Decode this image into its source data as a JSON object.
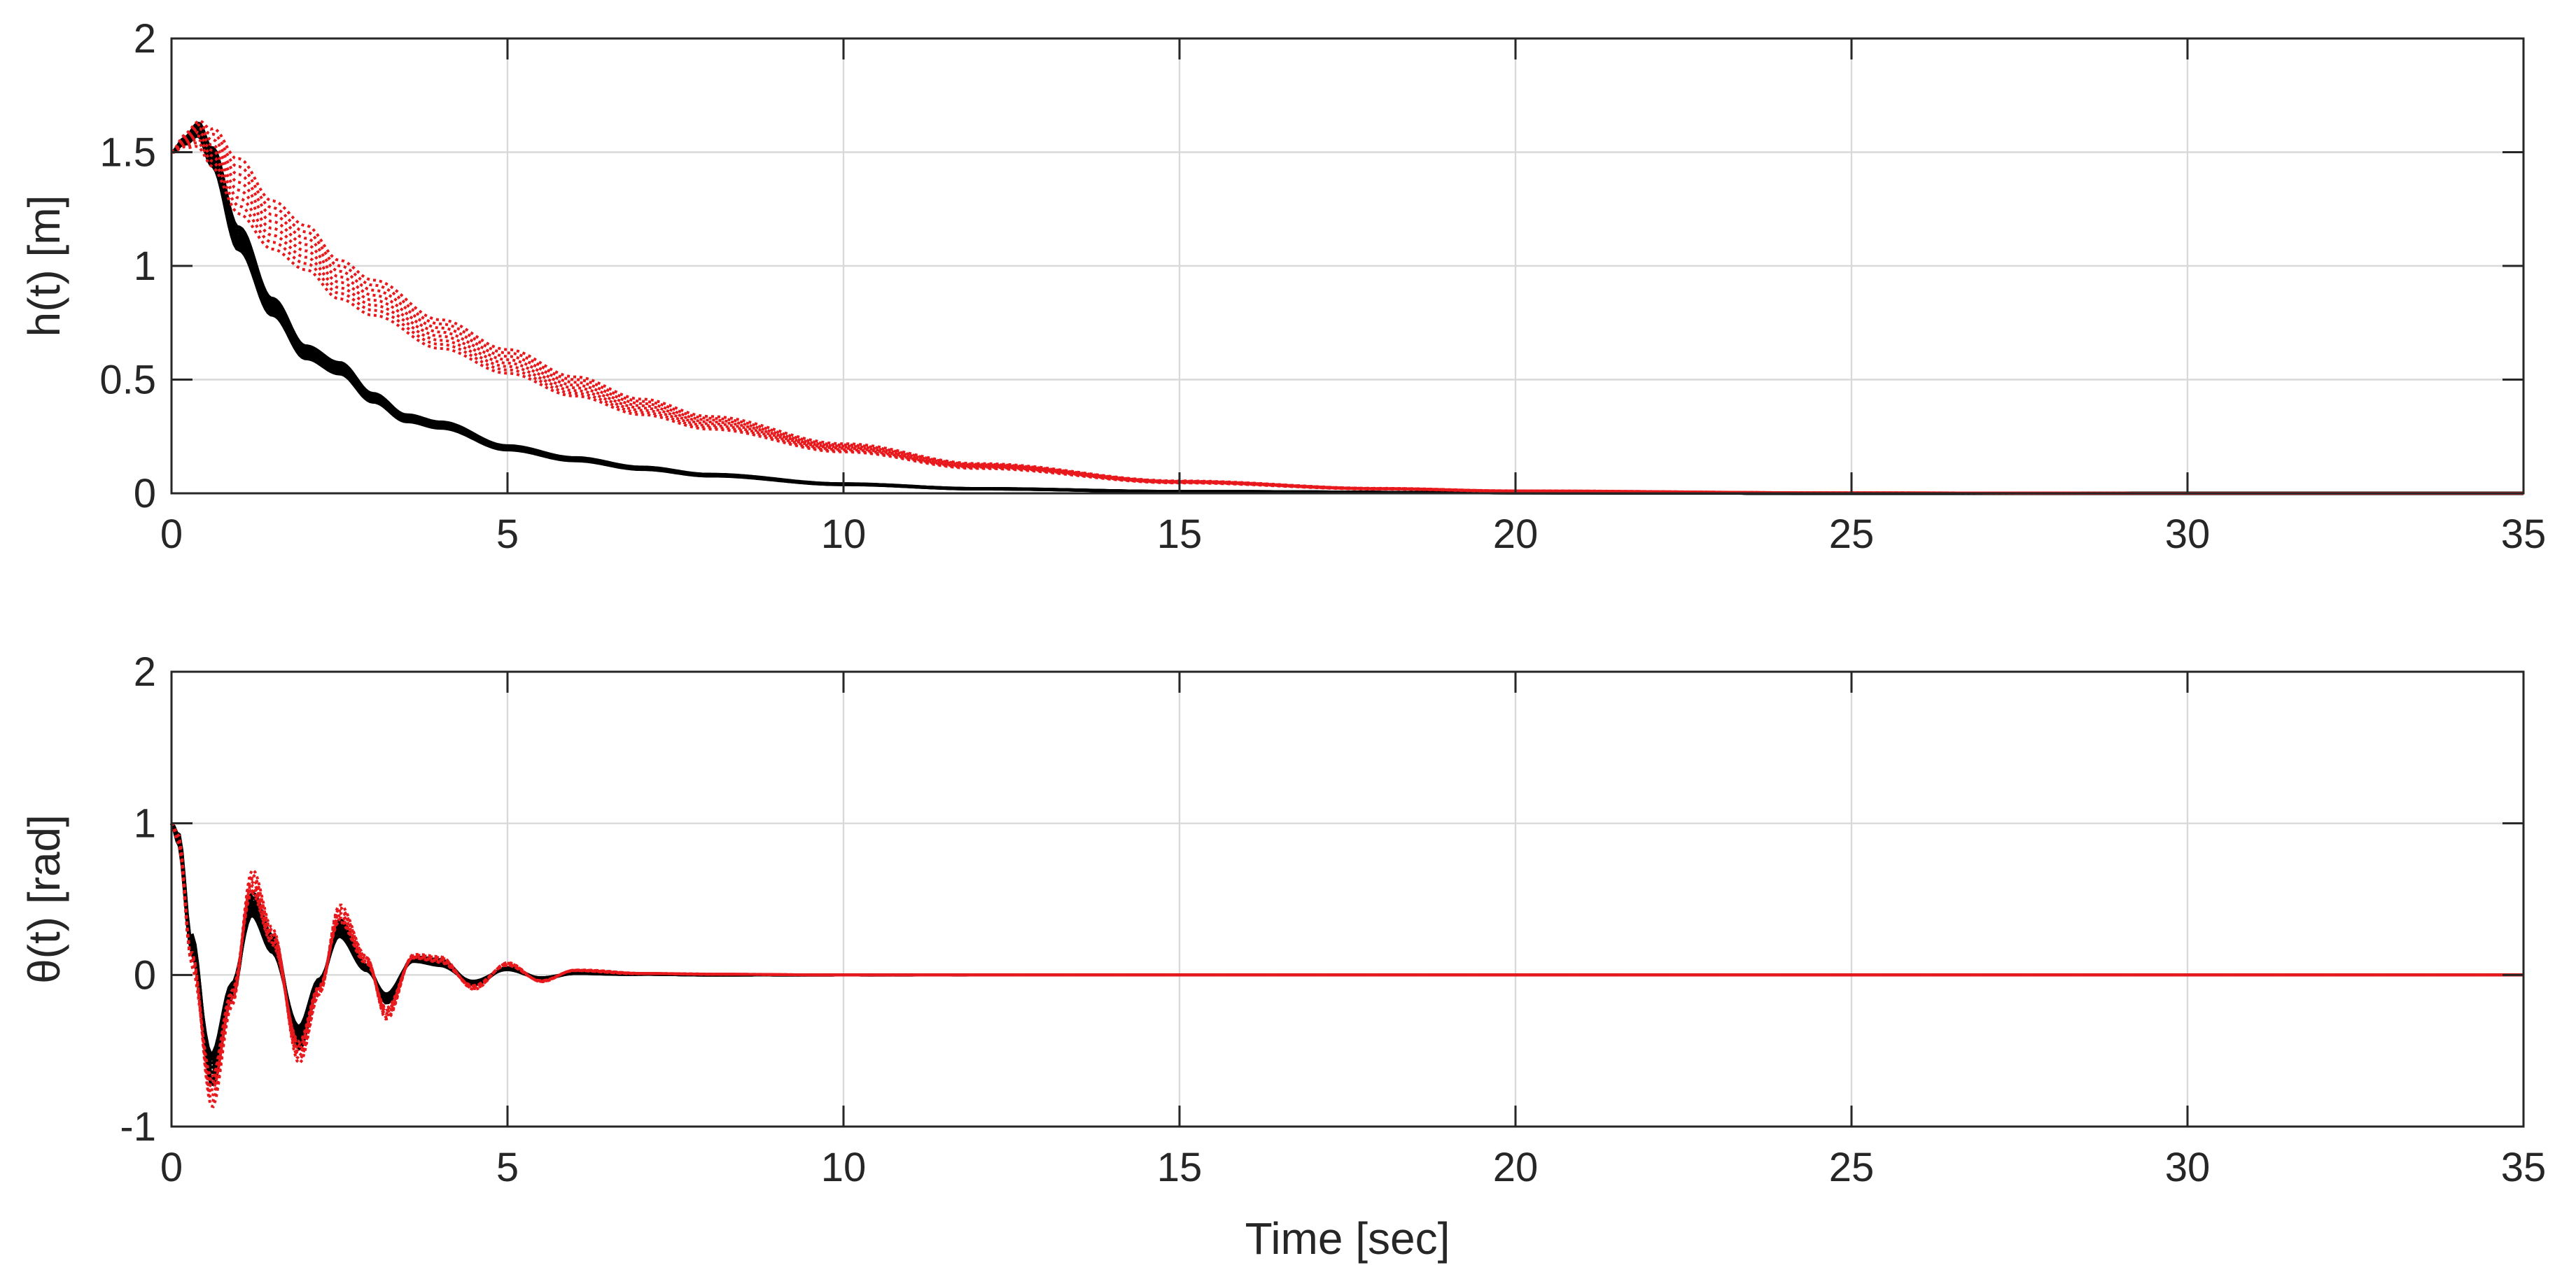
{
  "chart_data": [
    {
      "type": "line",
      "xlabel": "Time [sec]",
      "ylabel": "h(t) [m]",
      "xlim": [
        0,
        35
      ],
      "ylim": [
        0,
        2
      ],
      "xticks": [
        "0",
        "5",
        "10",
        "15",
        "20",
        "25",
        "30",
        "35"
      ],
      "yticks": [
        "0",
        "0.5",
        "1",
        "1.5",
        "2"
      ],
      "grid": true,
      "series_groups": [
        {
          "line_style": "solid",
          "color": "#000000",
          "count": 8,
          "x": [
            0,
            0.2,
            0.4,
            0.6,
            1.0,
            1.5,
            2.0,
            2.5,
            3.0,
            3.5,
            4.0,
            5.0,
            6.0,
            7.0,
            8.0,
            10.0,
            12.0,
            15.0,
            20.0,
            25.0,
            30.0,
            35.0
          ],
          "y": [
            1.5,
            1.55,
            1.6,
            1.48,
            1.12,
            0.82,
            0.62,
            0.55,
            0.42,
            0.33,
            0.3,
            0.2,
            0.15,
            0.11,
            0.08,
            0.04,
            0.02,
            0.008,
            0.002,
            0.0,
            0.0,
            0.0
          ]
        },
        {
          "line_style": "dotted",
          "color": "#e8191c",
          "count": 8,
          "x": [
            0,
            0.2,
            0.4,
            0.6,
            1.0,
            1.5,
            2.0,
            2.5,
            3.0,
            4.0,
            5.0,
            6.0,
            7.0,
            8.0,
            10.0,
            12.0,
            15.0,
            18.0,
            20.0,
            25.0,
            30.0,
            35.0
          ],
          "y": [
            1.5,
            1.55,
            1.58,
            1.52,
            1.35,
            1.18,
            1.08,
            0.94,
            0.86,
            0.7,
            0.58,
            0.47,
            0.38,
            0.31,
            0.2,
            0.12,
            0.05,
            0.02,
            0.01,
            0.002,
            0.0,
            0.0
          ]
        }
      ]
    },
    {
      "type": "line",
      "xlabel": "Time [sec]",
      "ylabel": "θ(t) [rad]",
      "xlim": [
        0,
        35
      ],
      "ylim": [
        -1,
        2
      ],
      "xticks": [
        "0",
        "5",
        "10",
        "15",
        "20",
        "25",
        "30",
        "35"
      ],
      "yticks": [
        "-1",
        "0",
        "1",
        "2"
      ],
      "grid": true,
      "series_groups": [
        {
          "line_style": "solid",
          "color": "#000000",
          "count": 8,
          "x": [
            0,
            0.1,
            0.3,
            0.6,
            0.9,
            1.2,
            1.5,
            1.9,
            2.2,
            2.5,
            2.9,
            3.2,
            3.6,
            4.0,
            4.5,
            5.0,
            5.5,
            6.0,
            7.0,
            8.0,
            10.0,
            12.0,
            15.0,
            35.0
          ],
          "y": [
            1.0,
            0.9,
            0.2,
            -0.6,
            -0.1,
            0.45,
            0.2,
            -0.4,
            -0.05,
            0.3,
            0.05,
            -0.15,
            0.1,
            0.08,
            -0.05,
            0.04,
            -0.02,
            0.01,
            0.005,
            0.0,
            0.0,
            0.0,
            0.0,
            0.0
          ]
        },
        {
          "line_style": "dotted",
          "color": "#e8191c",
          "count": 8,
          "x": [
            0,
            0.1,
            0.3,
            0.6,
            0.9,
            1.2,
            1.5,
            1.9,
            2.2,
            2.5,
            2.9,
            3.2,
            3.6,
            4.0,
            4.5,
            5.0,
            5.5,
            6.0,
            7.0,
            8.0,
            10.0,
            12.0,
            15.0,
            35.0
          ],
          "y": [
            1.0,
            0.9,
            0.1,
            -0.75,
            -0.15,
            0.6,
            0.25,
            -0.5,
            -0.1,
            0.4,
            0.1,
            -0.25,
            0.12,
            0.1,
            -0.08,
            0.07,
            -0.04,
            0.03,
            0.01,
            0.005,
            0.0,
            0.0,
            0.0,
            0.0
          ]
        }
      ]
    }
  ]
}
